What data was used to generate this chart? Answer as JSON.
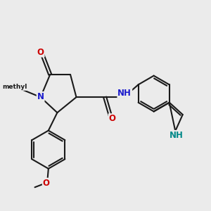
{
  "bg": "#ebebeb",
  "bc": "#1a1a1a",
  "Nc": "#1a1acc",
  "Oc": "#cc0000",
  "NHc": "#008888",
  "lw": 1.5,
  "fs": 8.5,
  "xlim": [
    0.8,
    9.5
  ],
  "ylim": [
    1.5,
    8.8
  ]
}
